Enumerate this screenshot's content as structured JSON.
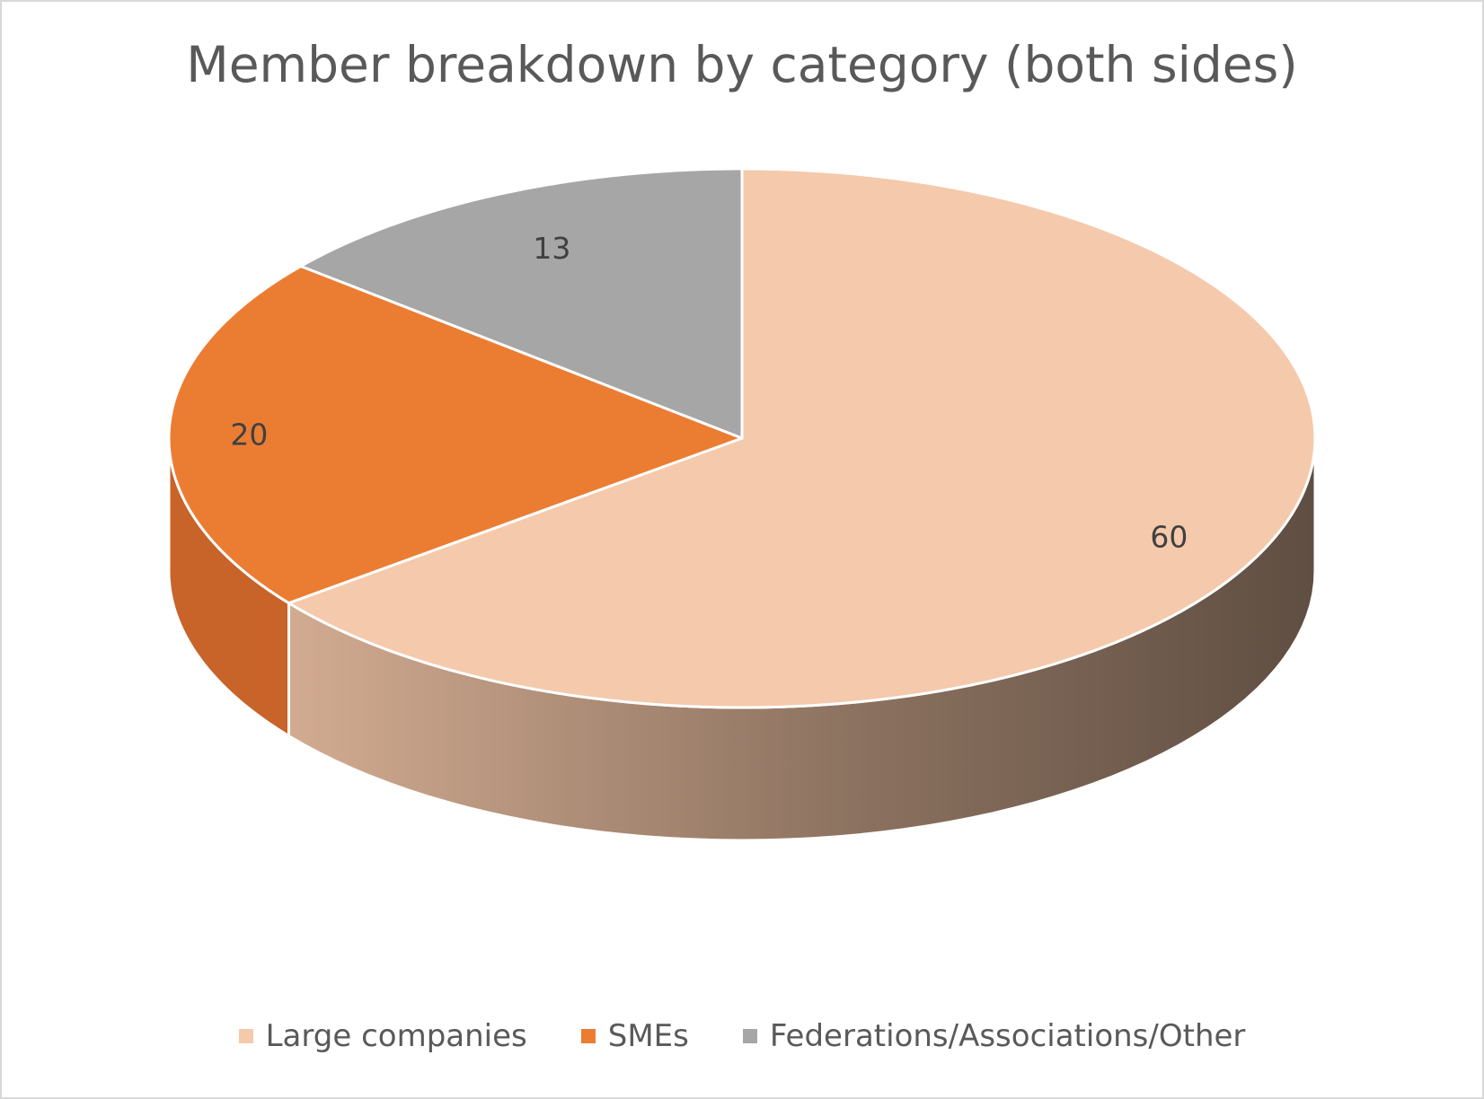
{
  "chart_data": {
    "type": "pie",
    "style": "3d",
    "title": "Member breakdown by category (both sides)",
    "categories": [
      "Large companies",
      "SMEs",
      "Federations/Associations/Other"
    ],
    "values": [
      60,
      20,
      13
    ],
    "data_labels": [
      "60",
      "20",
      "13"
    ],
    "colors": [
      "#f5c9ab",
      "#eb7d33",
      "#a6a6a6"
    ],
    "side_colors": [
      "#a8826a",
      "#c8632a",
      "#7f7f7f"
    ],
    "legend_position": "bottom",
    "start_angle_deg": 0,
    "direction": "clockwise"
  }
}
